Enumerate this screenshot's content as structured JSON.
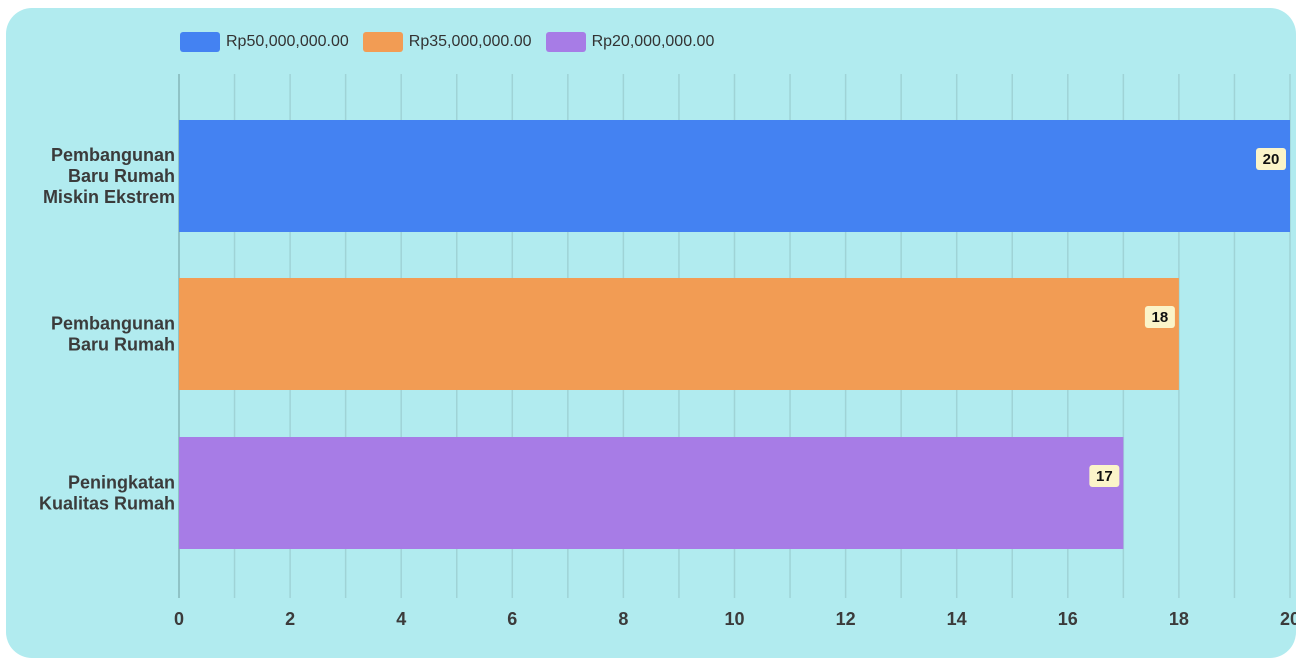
{
  "chart_data": {
    "type": "bar",
    "orientation": "horizontal",
    "categories": [
      [
        "Pembangunan",
        "Baru Rumah",
        "Miskin Ekstrem"
      ],
      [
        "Pembangunan",
        "Baru Rumah"
      ],
      [
        "Peningkatan",
        "Kualitas Rumah"
      ]
    ],
    "values": [
      20,
      18,
      17
    ],
    "colors": [
      "#4482f2",
      "#f29c54",
      "#a77ce6"
    ],
    "legend": [
      "Rp50,000,000.00",
      "Rp35,000,000.00",
      "Rp20,000,000.00"
    ],
    "legend_position": "top-left",
    "x_ticks": [
      "0",
      "2",
      "4",
      "6",
      "8",
      "10",
      "12",
      "14",
      "16",
      "18",
      "20"
    ],
    "xlim": [
      0,
      20
    ],
    "grid": true,
    "title": "",
    "xlabel": "",
    "ylabel": ""
  }
}
